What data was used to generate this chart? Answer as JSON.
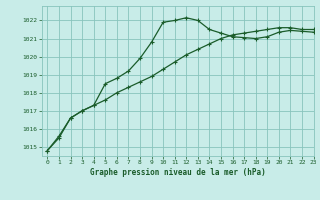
{
  "title": "Graphe pression niveau de la mer (hPa)",
  "bg_color": "#c8ece8",
  "grid_color": "#88c4bc",
  "line_color": "#1a5c2a",
  "xlim": [
    -0.5,
    23
  ],
  "ylim": [
    1014.5,
    1022.8
  ],
  "yticks": [
    1015,
    1016,
    1017,
    1018,
    1019,
    1020,
    1021,
    1022
  ],
  "xticks": [
    0,
    1,
    2,
    3,
    4,
    5,
    6,
    7,
    8,
    9,
    10,
    11,
    12,
    13,
    14,
    15,
    16,
    17,
    18,
    19,
    20,
    21,
    22,
    23
  ],
  "series1_x": [
    0,
    1,
    2,
    3,
    4,
    5,
    6,
    7,
    8,
    9,
    10,
    11,
    12,
    13,
    14,
    15,
    16,
    17,
    18,
    19,
    20,
    21,
    22,
    23
  ],
  "series1_y": [
    1014.8,
    1015.5,
    1016.6,
    1017.0,
    1017.3,
    1017.6,
    1018.0,
    1018.3,
    1018.6,
    1018.9,
    1019.3,
    1019.7,
    1020.1,
    1020.4,
    1020.7,
    1021.0,
    1021.2,
    1021.3,
    1021.4,
    1021.5,
    1021.6,
    1021.6,
    1021.5,
    1021.5
  ],
  "series2_x": [
    0,
    1,
    2,
    3,
    4,
    5,
    6,
    7,
    8,
    9,
    10,
    11,
    12,
    13,
    14,
    15,
    16,
    17,
    18,
    19,
    20,
    21,
    22,
    23
  ],
  "series2_y": [
    1014.8,
    1015.6,
    1016.6,
    1017.0,
    1017.3,
    1018.5,
    1018.8,
    1019.2,
    1019.9,
    1020.8,
    1021.9,
    1022.0,
    1022.15,
    1022.0,
    1021.5,
    1021.3,
    1021.1,
    1021.05,
    1021.0,
    1021.1,
    1021.35,
    1021.45,
    1021.4,
    1021.35
  ]
}
